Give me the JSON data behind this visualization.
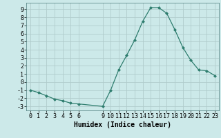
{
  "x": [
    0,
    1,
    2,
    3,
    4,
    5,
    6,
    9,
    10,
    11,
    12,
    13,
    14,
    15,
    16,
    17,
    18,
    19,
    20,
    21,
    22,
    23
  ],
  "y": [
    -1.0,
    -1.3,
    -1.7,
    -2.1,
    -2.3,
    -2.6,
    -2.7,
    -3.0,
    -1.0,
    1.5,
    3.3,
    5.2,
    7.5,
    9.2,
    9.2,
    8.5,
    6.5,
    4.3,
    2.7,
    1.5,
    1.4,
    0.8
  ],
  "line_color": "#2e7d6e",
  "marker_color": "#2e7d6e",
  "bg_color": "#cce9e9",
  "grid_color": "#b0cccc",
  "xlabel": "Humidex (Indice chaleur)",
  "xlim": [
    -0.5,
    23.5
  ],
  "ylim": [
    -3.5,
    9.8
  ],
  "xtick_labels": [
    "0",
    "1",
    "2",
    "3",
    "4",
    "5",
    "6",
    "9",
    "10",
    "11",
    "12",
    "13",
    "14",
    "15",
    "16",
    "17",
    "18",
    "19",
    "20",
    "21",
    "22",
    "23"
  ],
  "xtick_positions": [
    0,
    1,
    2,
    3,
    4,
    5,
    6,
    9,
    10,
    11,
    12,
    13,
    14,
    15,
    16,
    17,
    18,
    19,
    20,
    21,
    22,
    23
  ],
  "ytick_positions": [
    -3,
    -2,
    -1,
    0,
    1,
    2,
    3,
    4,
    5,
    6,
    7,
    8,
    9
  ],
  "ytick_labels": [
    "-3",
    "-2",
    "-1",
    "0",
    "1",
    "2",
    "3",
    "4",
    "5",
    "6",
    "7",
    "8",
    "9"
  ],
  "xlabel_fontsize": 7,
  "tick_fontsize": 6
}
